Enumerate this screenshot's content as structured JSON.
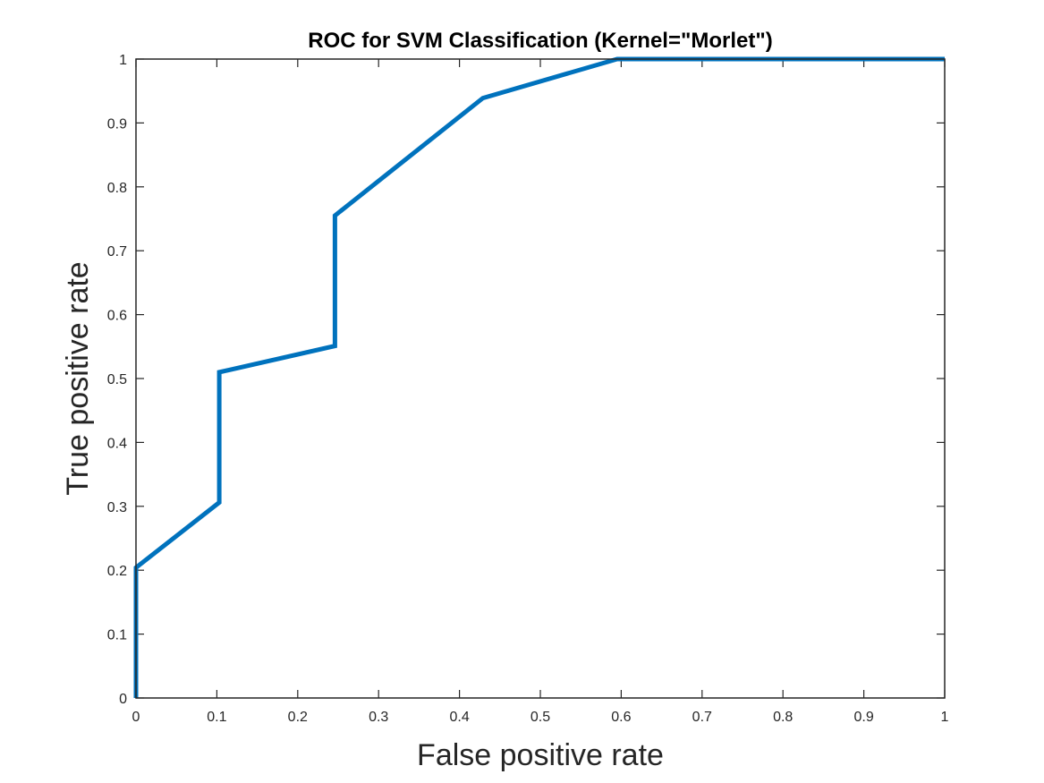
{
  "chart_data": {
    "type": "line",
    "title": "ROC for SVM Classification (Kernel=\"Morlet\")",
    "xlabel": "False positive rate",
    "ylabel": "True positive rate",
    "xlim": [
      0,
      1
    ],
    "ylim": [
      0,
      1
    ],
    "xticks": [
      0,
      0.1,
      0.2,
      0.3,
      0.4,
      0.5,
      0.6,
      0.7,
      0.8,
      0.9,
      1
    ],
    "xtick_labels": [
      "0",
      "0.1",
      "0.2",
      "0.3",
      "0.4",
      "0.5",
      "0.6",
      "0.7",
      "0.8",
      "0.9",
      "1"
    ],
    "yticks": [
      0,
      0.1,
      0.2,
      0.3,
      0.4,
      0.5,
      0.6,
      0.7,
      0.8,
      0.9,
      1
    ],
    "ytick_labels": [
      "0",
      "0.1",
      "0.2",
      "0.3",
      "0.4",
      "0.5",
      "0.6",
      "0.7",
      "0.8",
      "0.9",
      "1"
    ],
    "grid": false,
    "series": [
      {
        "color": "#0072BD",
        "x": [
          0,
          0,
          0.103,
          0.103,
          0.246,
          0.246,
          0.429,
          0.595,
          1.0
        ],
        "y": [
          0,
          0.204,
          0.306,
          0.51,
          0.551,
          0.755,
          0.939,
          1.0,
          1.0
        ]
      }
    ]
  }
}
